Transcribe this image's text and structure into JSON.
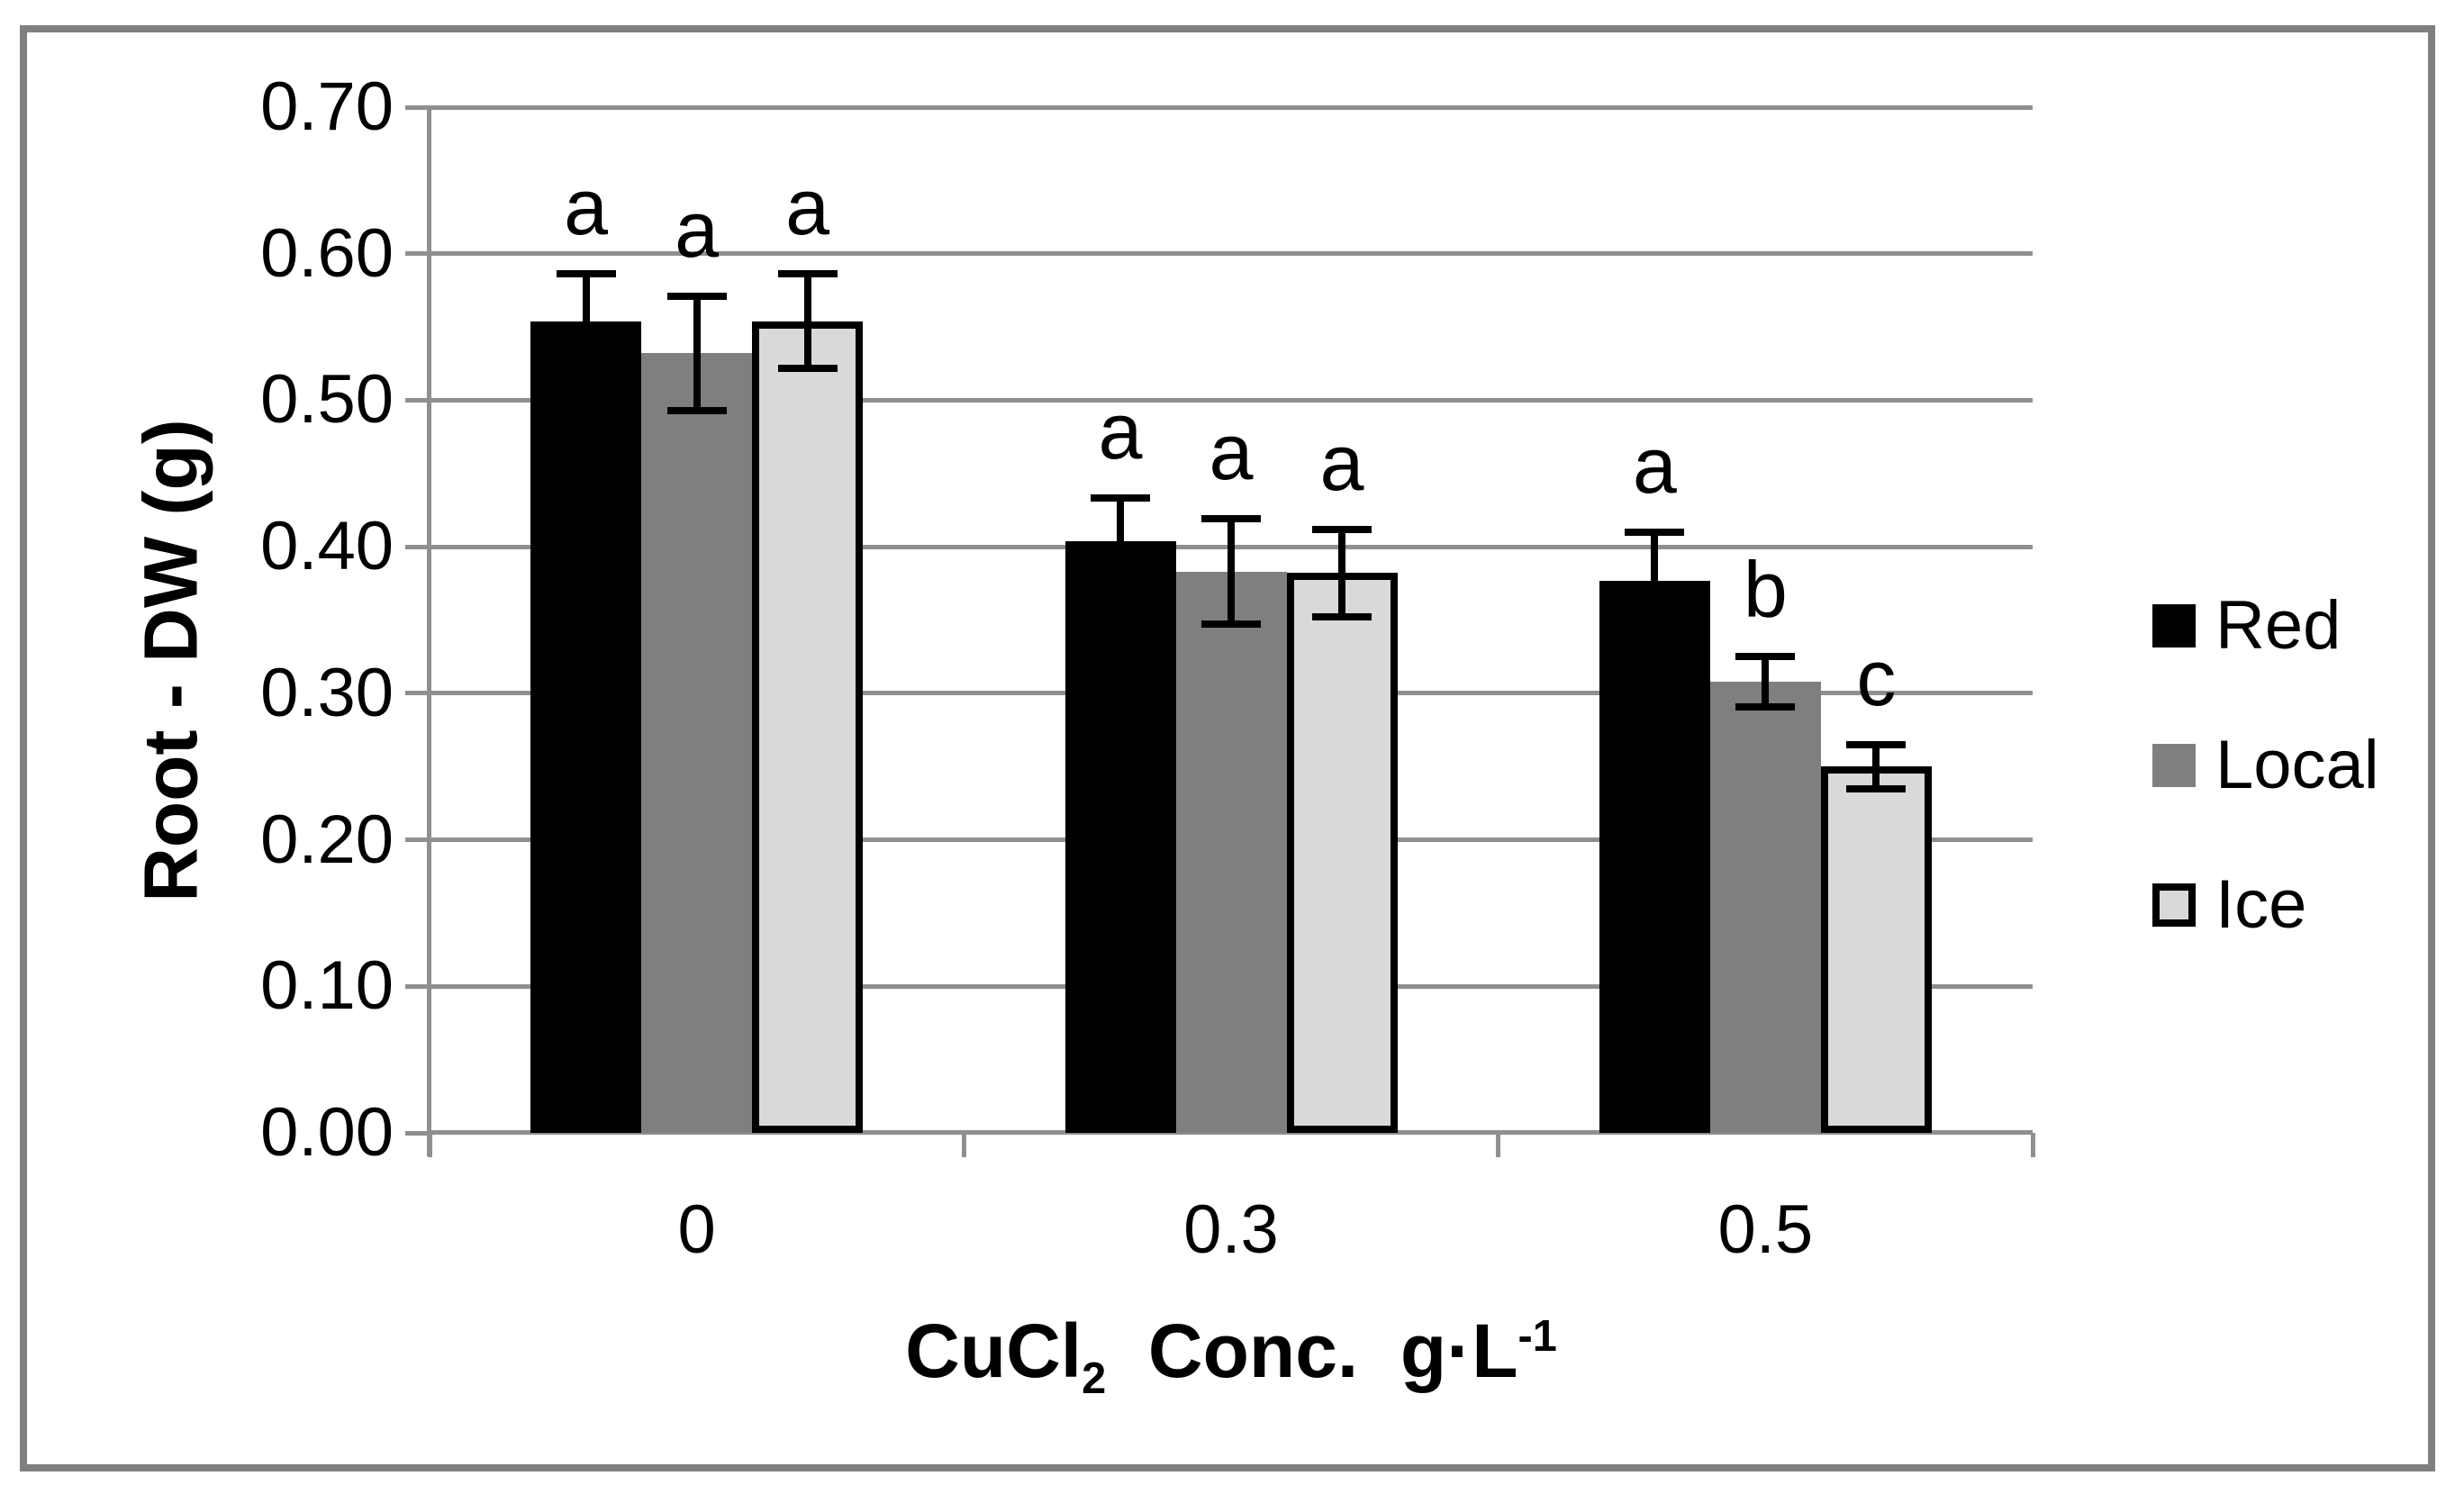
{
  "figure": {
    "background": "#FFFFFF",
    "border_color": "#808080",
    "gridline_color": "#8F8F8F",
    "axis_color": "#8F8F8F",
    "text_color": "#000000"
  },
  "chart_data": {
    "type": "bar",
    "title": "",
    "categories": [
      "0",
      "0.3",
      "0.5"
    ],
    "series": [
      {
        "name": "Red",
        "color": "#000000",
        "border": "#000000",
        "values": [
          0.554,
          0.404,
          0.377
        ],
        "errors": [
          0.032,
          0.029,
          0.033
        ]
      },
      {
        "name": "Local",
        "color": "#7F7F7F",
        "border": "#7F7F7F",
        "values": [
          0.532,
          0.383,
          0.308
        ],
        "errors": [
          0.039,
          0.036,
          0.017
        ]
      },
      {
        "name": "Ice",
        "color": "#D9D9D9",
        "border": "#000000",
        "values": [
          0.554,
          0.382,
          0.25
        ],
        "errors": [
          0.032,
          0.03,
          0.015
        ]
      }
    ],
    "sig_letters": [
      [
        "a",
        "a",
        "a"
      ],
      [
        "a",
        "a",
        "a"
      ],
      [
        "a",
        "b",
        "c"
      ]
    ],
    "ylabel": "Root - DW (g)",
    "xlabel_parts": {
      "chem": "CuCl",
      "chem_sub": "2",
      "mid": "  Conc.  g·L",
      "sup": "-1"
    },
    "ylim": [
      0,
      0.7
    ],
    "ytick_step": 0.1,
    "ytick_labels": [
      "0.00",
      "0.10",
      "0.20",
      "0.30",
      "0.40",
      "0.50",
      "0.60",
      "0.70"
    ],
    "grid": true,
    "legend_position": "right"
  }
}
